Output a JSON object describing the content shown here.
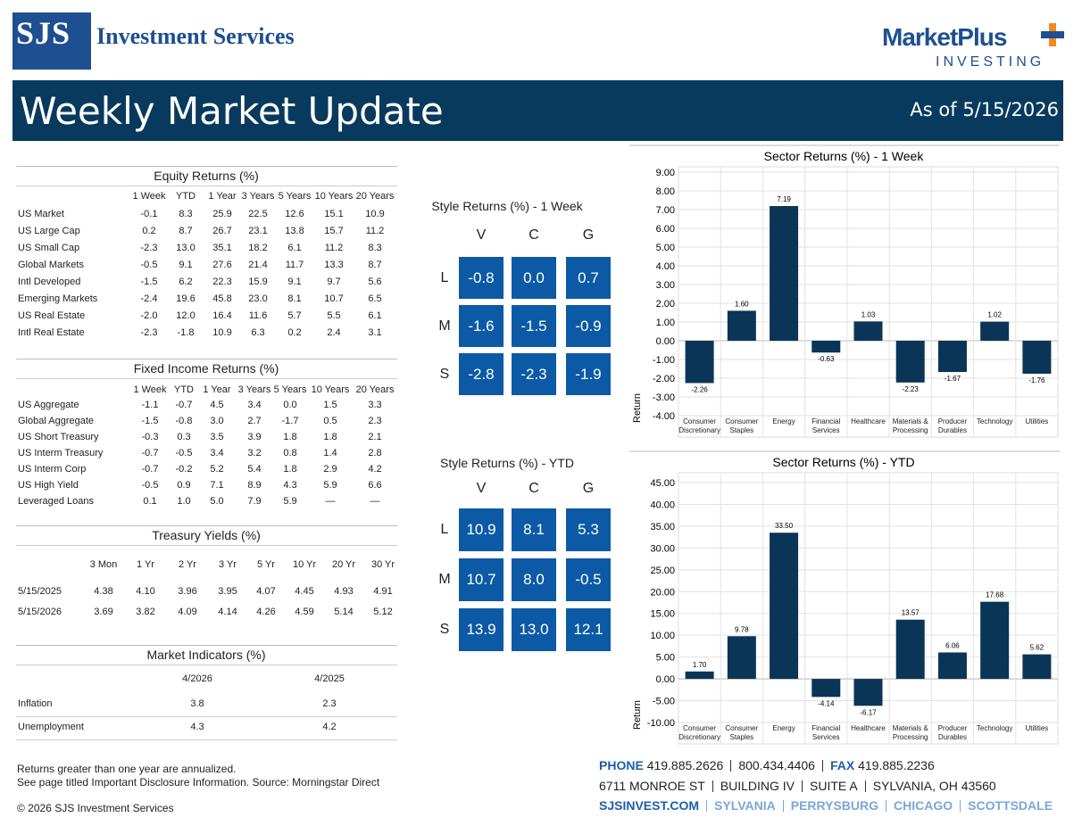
{
  "header": {
    "logo": "SJS",
    "company": "Investment Services",
    "brand": "MarketPlus",
    "brand_sub": "INVESTING",
    "title": "Weekly Market Update",
    "date": "As of 5/15/2026"
  },
  "equity": {
    "title": "Equity Returns (%)",
    "columns": [
      "1 Week",
      "YTD",
      "1 Year",
      "3 Years",
      "5 Years",
      "10 Years",
      "20 Years"
    ],
    "rows": [
      {
        "label": "US Market",
        "values": [
          "-0.1",
          "8.3",
          "25.9",
          "22.5",
          "12.6",
          "15.1",
          "10.9"
        ]
      },
      {
        "label": "US Large Cap",
        "values": [
          "0.2",
          "8.7",
          "26.7",
          "23.1",
          "13.8",
          "15.7",
          "11.2"
        ]
      },
      {
        "label": "US Small Cap",
        "values": [
          "-2.3",
          "13.0",
          "35.1",
          "18.2",
          "6.1",
          "11.2",
          "8.3"
        ]
      },
      {
        "label": "Global Markets",
        "values": [
          "-0.5",
          "9.1",
          "27.6",
          "21.4",
          "11.7",
          "13.3",
          "8.7"
        ]
      },
      {
        "label": "Intl Developed",
        "values": [
          "-1.5",
          "6.2",
          "22.3",
          "15.9",
          "9.1",
          "9.7",
          "5.6"
        ]
      },
      {
        "label": "Emerging Markets",
        "values": [
          "-2.4",
          "19.6",
          "45.8",
          "23.0",
          "8.1",
          "10.7",
          "6.5"
        ]
      },
      {
        "label": "US Real Estate",
        "values": [
          "-2.0",
          "12.0",
          "16.4",
          "11.6",
          "5.7",
          "5.5",
          "6.1"
        ]
      },
      {
        "label": "Intl Real Estate",
        "values": [
          "-2.3",
          "-1.8",
          "10.9",
          "6.3",
          "0.2",
          "2.4",
          "3.1"
        ]
      }
    ]
  },
  "fixed_income": {
    "title": "Fixed Income Returns (%)",
    "columns": [
      "1 Week",
      "YTD",
      "1 Year",
      "3 Years",
      "5 Years",
      "10 Years",
      "20 Years"
    ],
    "rows": [
      {
        "label": "US Aggregate",
        "values": [
          "-1.1",
          "-0.7",
          "4.5",
          "3.4",
          "0.0",
          "1.5",
          "3.3"
        ]
      },
      {
        "label": "Global Aggregate",
        "values": [
          "-1.5",
          "-0.8",
          "3.0",
          "2.7",
          "-1.7",
          "0.5",
          "2.3"
        ]
      },
      {
        "label": "US Short Treasury",
        "values": [
          "-0.3",
          "0.3",
          "3.5",
          "3.9",
          "1.8",
          "1.8",
          "2.1"
        ]
      },
      {
        "label": "US Interm Treasury",
        "values": [
          "-0.7",
          "-0.5",
          "3.4",
          "3.2",
          "0.8",
          "1.4",
          "2.8"
        ]
      },
      {
        "label": "US Interm Corp",
        "values": [
          "-0.7",
          "-0.2",
          "5.2",
          "5.4",
          "1.8",
          "2.9",
          "4.2"
        ]
      },
      {
        "label": "US High Yield",
        "values": [
          "-0.5",
          "0.9",
          "7.1",
          "8.9",
          "4.3",
          "5.9",
          "6.6"
        ]
      },
      {
        "label": "Leveraged Loans",
        "values": [
          "0.1",
          "1.0",
          "5.0",
          "7.9",
          "5.9",
          "—",
          "—"
        ]
      }
    ]
  },
  "treasury": {
    "title": "Treasury Yields (%)",
    "columns": [
      "3 Mon",
      "1 Yr",
      "2 Yr",
      "3 Yr",
      "5 Yr",
      "10 Yr",
      "20 Yr",
      "30 Yr"
    ],
    "rows": [
      {
        "label": "5/15/2025",
        "values": [
          "4.38",
          "4.10",
          "3.96",
          "3.95",
          "4.07",
          "4.45",
          "4.93",
          "4.91"
        ]
      },
      {
        "label": "5/15/2026",
        "values": [
          "3.69",
          "3.82",
          "4.09",
          "4.14",
          "4.26",
          "4.59",
          "5.14",
          "5.12"
        ]
      }
    ]
  },
  "indicators": {
    "title": "Market Indicators (%)",
    "columns": [
      "4/2026",
      "4/2025"
    ],
    "rows": [
      {
        "label": "Inflation",
        "values": [
          "3.8",
          "2.3"
        ]
      },
      {
        "label": "Unemployment",
        "values": [
          "4.3",
          "4.2"
        ]
      }
    ]
  },
  "style_week": {
    "title": "Style Returns (%)  - 1 Week",
    "columns": [
      "V",
      "C",
      "G"
    ],
    "rows": [
      {
        "label": "L",
        "values": [
          "-0.8",
          "0.0",
          "0.7"
        ]
      },
      {
        "label": "M",
        "values": [
          "-1.6",
          "-1.5",
          "-0.9"
        ]
      },
      {
        "label": "S",
        "values": [
          "-2.8",
          "-2.3",
          "-1.9"
        ]
      }
    ]
  },
  "style_ytd": {
    "title": "Style Returns (%)  - YTD",
    "columns": [
      "V",
      "C",
      "G"
    ],
    "rows": [
      {
        "label": "L",
        "values": [
          "10.9",
          "8.1",
          "5.3"
        ]
      },
      {
        "label": "M",
        "values": [
          "10.7",
          "8.0",
          "-0.5"
        ]
      },
      {
        "label": "S",
        "values": [
          "13.9",
          "13.0",
          "12.1"
        ]
      }
    ]
  },
  "chart_data": [
    {
      "type": "bar",
      "title": "Sector Returns (%)  - 1 Week",
      "y_label": "Return",
      "color": "#0b3557",
      "categories": [
        "Consumer Discretionary",
        "Consumer Staples",
        "Energy",
        "Financial Services",
        "Healthcare",
        "Materials & Processing",
        "Producer Durables",
        "Technology",
        "Utilities"
      ],
      "values": [
        -2.26,
        1.6,
        7.19,
        -0.63,
        1.03,
        -2.23,
        -1.67,
        1.02,
        -1.76
      ],
      "value_labels": [
        "-2.26",
        "1.60",
        "7.19",
        "-0.63",
        "1.03",
        "-2.23",
        "-1.67",
        "1.02",
        "-1.76"
      ],
      "ylim": [
        -4,
        9
      ],
      "yticks": [
        {
          "value": 9,
          "label": "9.00"
        },
        {
          "value": 8,
          "label": "8.00"
        },
        {
          "value": 7,
          "label": "7.00"
        },
        {
          "value": 6,
          "label": "6.00"
        },
        {
          "value": 5,
          "label": "5.00"
        },
        {
          "value": 4,
          "label": "4.00"
        },
        {
          "value": 3,
          "label": "3.00"
        },
        {
          "value": 2,
          "label": "2.00"
        },
        {
          "value": 1,
          "label": "1.00"
        },
        {
          "value": 0,
          "label": "0.00"
        },
        {
          "value": -1,
          "label": "-1.00"
        },
        {
          "value": -2,
          "label": "-2.00"
        },
        {
          "value": -3,
          "label": "-3.00"
        },
        {
          "value": -4,
          "label": "-4.00"
        }
      ],
      "grid": true
    },
    {
      "type": "bar",
      "title": "Sector Returns (%)  - YTD",
      "y_label": "Return",
      "color": "#0b3557",
      "categories": [
        "Consumer Discretionary",
        "Consumer Staples",
        "Energy",
        "Financial Services",
        "Healthcare",
        "Materials & Processing",
        "Producer Durables",
        "Technology",
        "Utilities"
      ],
      "values": [
        1.7,
        9.78,
        33.5,
        -4.14,
        -6.17,
        13.57,
        6.06,
        17.68,
        5.62
      ],
      "value_labels": [
        "1.70",
        "9.78",
        "33.50",
        "-4.14",
        "-6.17",
        "13.57",
        "6.06",
        "17.68",
        "5.62"
      ],
      "ylim": [
        -10,
        45
      ],
      "yticks": [
        {
          "value": 45,
          "label": "45.00"
        },
        {
          "value": 40,
          "label": "40.00"
        },
        {
          "value": 35,
          "label": "35.00"
        },
        {
          "value": 30,
          "label": "30.00"
        },
        {
          "value": 25,
          "label": "25.00"
        },
        {
          "value": 20,
          "label": "20.00"
        },
        {
          "value": 15,
          "label": "15.00"
        },
        {
          "value": 10,
          "label": "10.00"
        },
        {
          "value": 5,
          "label": "5.00"
        },
        {
          "value": 0,
          "label": "0.00"
        },
        {
          "value": -5,
          "label": "-5.00"
        },
        {
          "value": -10,
          "label": "-10.00"
        }
      ],
      "grid": true
    }
  ],
  "footer": {
    "notes": [
      "Returns greater than one year are annualized.",
      "See page titled Important Disclosure Information. Source: Morningstar Direct"
    ],
    "copyright": "© 2026 SJS Investment Services",
    "contact": {
      "phone_label": "PHONE",
      "phones": [
        "419.885.2626",
        "800.434.4406"
      ],
      "fax_label": "FAX",
      "fax": "419.885.2236",
      "address": [
        "6711 MONROE ST",
        "BUILDING IV",
        "SUITE A",
        "SYLVANIA, OH 43560"
      ],
      "links": [
        "SJSINVEST.COM",
        "SYLVANIA",
        "PERRYSBURG",
        "CHICAGO",
        "SCOTTSDALE"
      ]
    }
  }
}
